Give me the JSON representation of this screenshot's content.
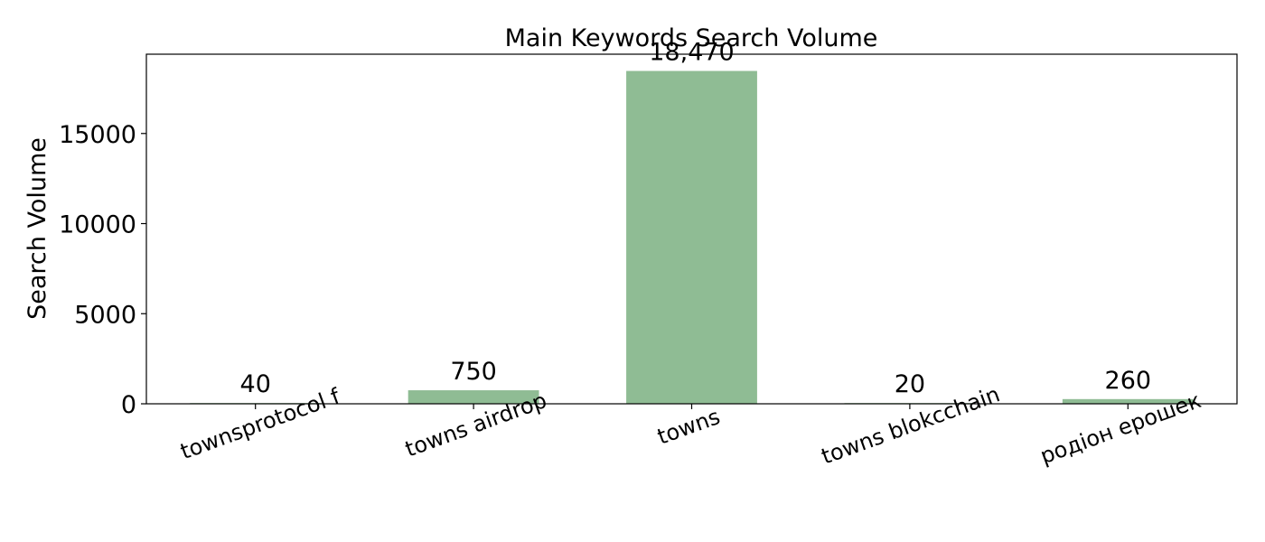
{
  "chart_data": {
    "type": "bar",
    "title": "Main Keywords Search Volume",
    "xlabel": "",
    "ylabel": "Search Volume",
    "categories": [
      "townsprotocol f",
      "towns airdrop",
      "towns",
      "towns blokcchain",
      "родіон ерошек"
    ],
    "values": [
      40,
      750,
      18470,
      20,
      260
    ],
    "value_labels": [
      "40",
      "750",
      "18,470",
      "20",
      "260"
    ],
    "yticks": [
      0,
      5000,
      10000,
      15000
    ],
    "ytick_labels": [
      "0",
      "5000",
      "10000",
      "15000"
    ],
    "ylim": [
      0,
      19400
    ],
    "grid": false,
    "legend": "none",
    "bar_color": "#8fbc94",
    "axis_color": "#000000"
  }
}
